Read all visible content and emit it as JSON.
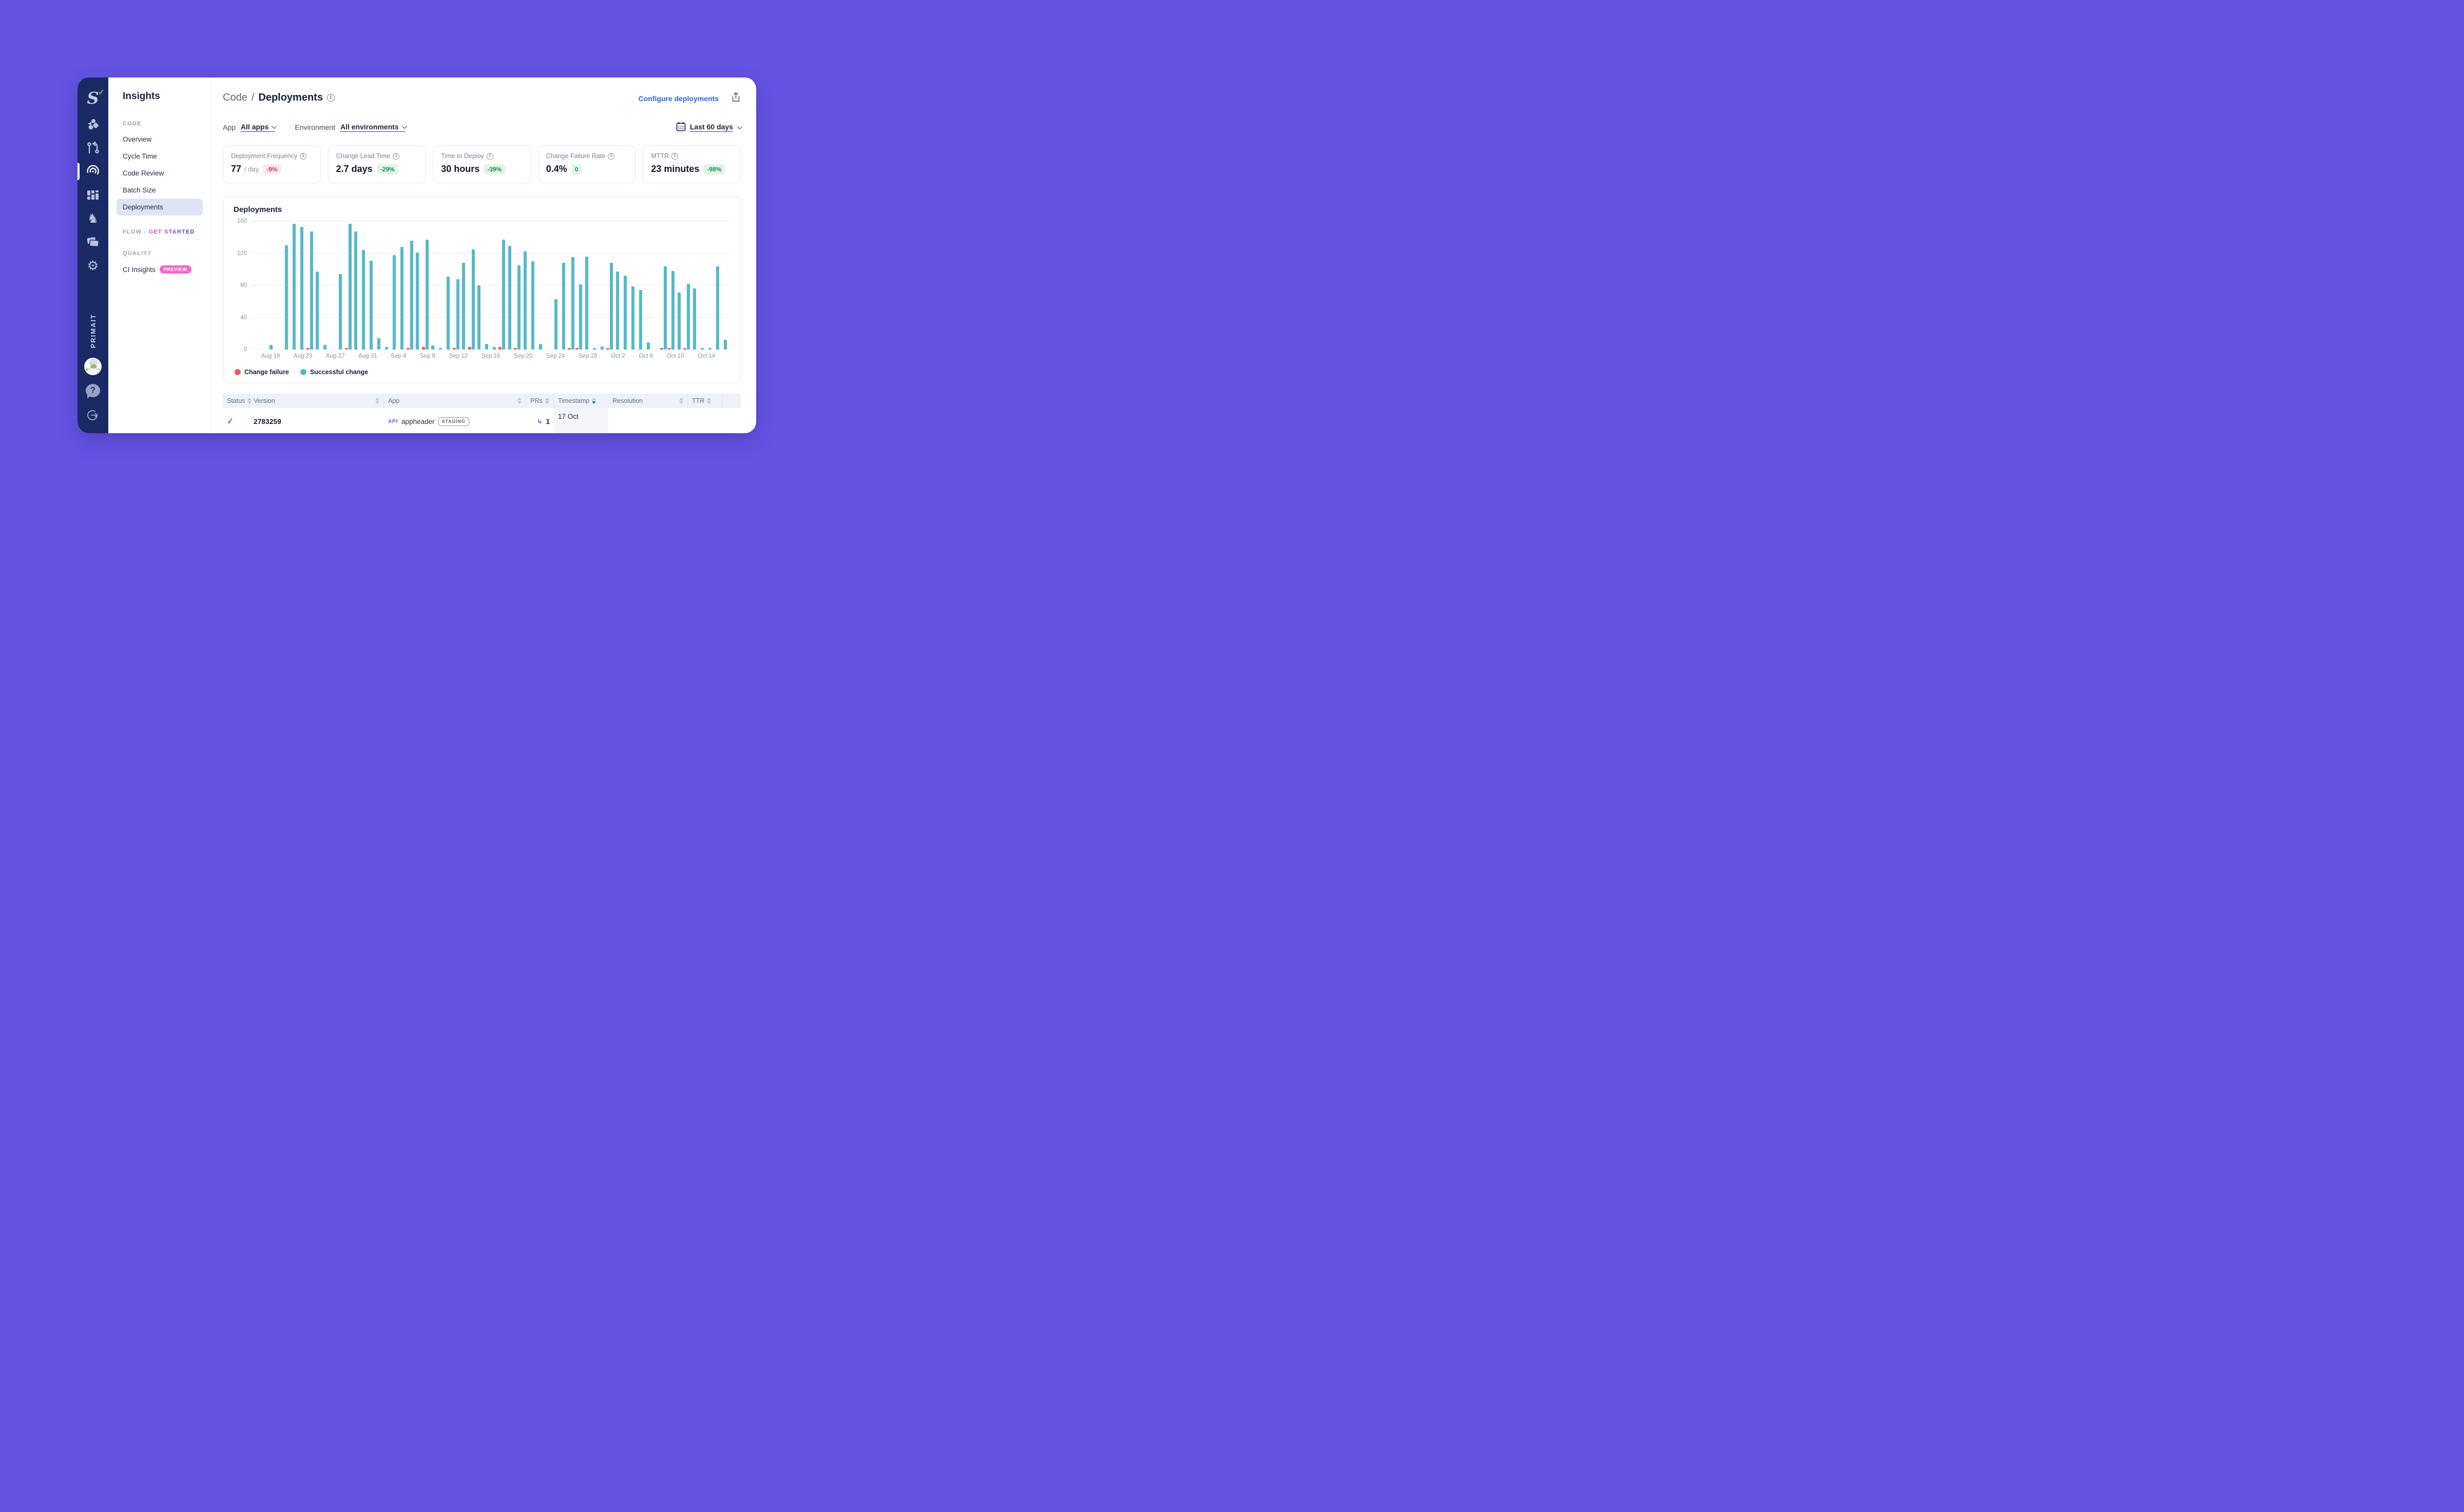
{
  "rail": {
    "workspace": "PRIMAIT",
    "logo_letter": "S",
    "icons": [
      "swarmia-logo",
      "teams-shapes-icon",
      "pull-request-icon",
      "insights-target-icon",
      "dashboard-grid-icon",
      "chess-knight-icon",
      "copies-icon",
      "settings-gear-icon",
      "avatar",
      "help-icon",
      "logout-icon"
    ]
  },
  "sidebar": {
    "title": "Insights",
    "code_section": "CODE",
    "code_items": [
      "Overview",
      "Cycle Time",
      "Code Review",
      "Batch Size",
      "Deployments"
    ],
    "selected_item": "Deployments",
    "flow_label": "FLOW -",
    "flow_cta": "GET STARTED",
    "quality_section": "QUALITY",
    "quality_item": "CI Insights",
    "preview_badge": "PREVIEW"
  },
  "header": {
    "breadcrumb_parent": "Code",
    "breadcrumb_sep": "/",
    "title": "Deployments",
    "configure_link": "Configure deployments"
  },
  "filters": {
    "app_label": "App",
    "app_value": "All apps",
    "env_label": "Environment",
    "env_value": "All environments",
    "date_range": "Last 60 days"
  },
  "metrics": [
    {
      "label": "Deployment Frequency",
      "value": "77",
      "unit": "/ day",
      "delta": "-9%",
      "delta_kind": "negative"
    },
    {
      "label": "Change Lead Time",
      "value": "2.7 days",
      "unit": "",
      "delta": "-29%",
      "delta_kind": "positive"
    },
    {
      "label": "Time to Deploy",
      "value": "30 hours",
      "unit": "",
      "delta": "-39%",
      "delta_kind": "positive"
    },
    {
      "label": "Change Failure Rate",
      "value": "0.4%",
      "unit": "",
      "delta": "0",
      "delta_kind": "positive"
    },
    {
      "label": "MTTR",
      "value": "23 minutes",
      "unit": "",
      "delta": "-98%",
      "delta_kind": "positive"
    }
  ],
  "chart_data": {
    "type": "bar",
    "title": "Deployments",
    "ylabel": "",
    "xlabel": "",
    "ymax": 160,
    "yticks": [
      0,
      40,
      80,
      120,
      160
    ],
    "grid": true,
    "legend_position": "bottom",
    "legend": [
      {
        "label": "Change failure",
        "color": "#ee5a63"
      },
      {
        "label": "Successful change",
        "color": "#56b9ca"
      }
    ],
    "days": [
      {
        "date": "Aug 17",
        "success": 0,
        "failure": 0,
        "tick": ""
      },
      {
        "date": "Aug 18",
        "success": 0,
        "failure": 0,
        "tick": ""
      },
      {
        "date": "Aug 19",
        "success": 6,
        "failure": 0,
        "tick": "Aug 19"
      },
      {
        "date": "Aug 20",
        "success": 0,
        "failure": 0,
        "tick": ""
      },
      {
        "date": "Aug 21",
        "success": 130,
        "failure": 0,
        "tick": ""
      },
      {
        "date": "Aug 22",
        "success": 157,
        "failure": 0,
        "tick": ""
      },
      {
        "date": "Aug 23",
        "success": 153,
        "failure": 0,
        "tick": "Aug 23"
      },
      {
        "date": "Aug 24",
        "success": 147,
        "failure": 2,
        "tick": ""
      },
      {
        "date": "Aug 25",
        "success": 97,
        "failure": 0,
        "tick": ""
      },
      {
        "date": "Aug 26",
        "success": 6,
        "failure": 0,
        "tick": ""
      },
      {
        "date": "Aug 27",
        "success": 0,
        "failure": 0,
        "tick": "Aug 27"
      },
      {
        "date": "Aug 28",
        "success": 94,
        "failure": 0,
        "tick": ""
      },
      {
        "date": "Aug 29",
        "success": 157,
        "failure": 2,
        "tick": ""
      },
      {
        "date": "Aug 30",
        "success": 147,
        "failure": 0,
        "tick": ""
      },
      {
        "date": "Aug 31",
        "success": 124,
        "failure": 0,
        "tick": "Aug 31"
      },
      {
        "date": "Sep 1",
        "success": 111,
        "failure": 0,
        "tick": ""
      },
      {
        "date": "Sep 2",
        "success": 14,
        "failure": 0,
        "tick": ""
      },
      {
        "date": "Sep 3",
        "success": 3,
        "failure": 0,
        "tick": ""
      },
      {
        "date": "Sep 4",
        "success": 118,
        "failure": 0,
        "tick": "Sep 4"
      },
      {
        "date": "Sep 5",
        "success": 128,
        "failure": 0,
        "tick": ""
      },
      {
        "date": "Sep 6",
        "success": 136,
        "failure": 2,
        "tick": ""
      },
      {
        "date": "Sep 7",
        "success": 121,
        "failure": 0,
        "tick": ""
      },
      {
        "date": "Sep 8",
        "success": 137,
        "failure": 3,
        "tick": "Sep 8"
      },
      {
        "date": "Sep 9",
        "success": 5,
        "failure": 0,
        "tick": ""
      },
      {
        "date": "Sep 10",
        "success": 2,
        "failure": 0,
        "tick": ""
      },
      {
        "date": "Sep 11",
        "success": 91,
        "failure": 0,
        "tick": ""
      },
      {
        "date": "Sep 12",
        "success": 88,
        "failure": 2,
        "tick": "Sep 12"
      },
      {
        "date": "Sep 13",
        "success": 108,
        "failure": 0,
        "tick": ""
      },
      {
        "date": "Sep 14",
        "success": 125,
        "failure": 3,
        "tick": ""
      },
      {
        "date": "Sep 15",
        "success": 80,
        "failure": 0,
        "tick": ""
      },
      {
        "date": "Sep 16",
        "success": 7,
        "failure": 0,
        "tick": "Sep 16"
      },
      {
        "date": "Sep 17",
        "success": 3,
        "failure": 0,
        "tick": ""
      },
      {
        "date": "Sep 18",
        "success": 137,
        "failure": 3,
        "tick": ""
      },
      {
        "date": "Sep 19",
        "success": 129,
        "failure": 0,
        "tick": ""
      },
      {
        "date": "Sep 20",
        "success": 105,
        "failure": 2,
        "tick": "Sep 20"
      },
      {
        "date": "Sep 21",
        "success": 122,
        "failure": 0,
        "tick": ""
      },
      {
        "date": "Sep 22",
        "success": 110,
        "failure": 0,
        "tick": ""
      },
      {
        "date": "Sep 23",
        "success": 7,
        "failure": 0,
        "tick": ""
      },
      {
        "date": "Sep 24",
        "success": 0,
        "failure": 0,
        "tick": "Sep 24"
      },
      {
        "date": "Sep 25",
        "success": 63,
        "failure": 0,
        "tick": ""
      },
      {
        "date": "Sep 26",
        "success": 108,
        "failure": 0,
        "tick": ""
      },
      {
        "date": "Sep 27",
        "success": 115,
        "failure": 2,
        "tick": ""
      },
      {
        "date": "Sep 28",
        "success": 81,
        "failure": 2,
        "tick": "Sep 28"
      },
      {
        "date": "Sep 29",
        "success": 116,
        "failure": 0,
        "tick": ""
      },
      {
        "date": "Sep 30",
        "success": 2,
        "failure": 0,
        "tick": ""
      },
      {
        "date": "Oct 1",
        "success": 4,
        "failure": 0,
        "tick": ""
      },
      {
        "date": "Oct 2",
        "success": 108,
        "failure": 2,
        "tick": "Oct 2"
      },
      {
        "date": "Oct 3",
        "success": 97,
        "failure": 0,
        "tick": ""
      },
      {
        "date": "Oct 4",
        "success": 92,
        "failure": 0,
        "tick": ""
      },
      {
        "date": "Oct 5",
        "success": 79,
        "failure": 0,
        "tick": ""
      },
      {
        "date": "Oct 6",
        "success": 74,
        "failure": 0,
        "tick": "Oct 6"
      },
      {
        "date": "Oct 7",
        "success": 9,
        "failure": 0,
        "tick": ""
      },
      {
        "date": "Oct 8",
        "success": 0,
        "failure": 0,
        "tick": ""
      },
      {
        "date": "Oct 9",
        "success": 104,
        "failure": 2,
        "tick": ""
      },
      {
        "date": "Oct 10",
        "success": 98,
        "failure": 2,
        "tick": "Oct 10"
      },
      {
        "date": "Oct 11",
        "success": 71,
        "failure": 0,
        "tick": ""
      },
      {
        "date": "Oct 12",
        "success": 82,
        "failure": 2,
        "tick": ""
      },
      {
        "date": "Oct 13",
        "success": 76,
        "failure": 0,
        "tick": ""
      },
      {
        "date": "Oct 14",
        "success": 2,
        "failure": 0,
        "tick": "Oct 14"
      },
      {
        "date": "Oct 15",
        "success": 2,
        "failure": 0,
        "tick": ""
      },
      {
        "date": "Oct 16",
        "success": 104,
        "failure": 0,
        "tick": ""
      },
      {
        "date": "Oct 17",
        "success": 12,
        "failure": 0,
        "tick": ""
      }
    ]
  },
  "table": {
    "columns": [
      "Status",
      "Version",
      "App",
      "PRs",
      "Timestamp",
      "Resolution",
      "TTR"
    ],
    "sorted_column": "Timestamp",
    "row": {
      "status": "success",
      "version": "2783259",
      "app_badge": "API",
      "app_name": "appheader",
      "app_env": "STAGING",
      "prs": "1",
      "timestamp": "17 Oct"
    }
  },
  "colors": {
    "page_background": "#6553e4",
    "rail_background": "#1a2a64",
    "accent_link": "#2866df",
    "bar_success": "#56b9ca",
    "bar_failure": "#ee5a63",
    "badge_negative_text": "#d6364f",
    "badge_positive_text": "#1e8a50",
    "selected_nav_background": "#dfe4f4",
    "preview_badge_background": "#f06ac6"
  }
}
